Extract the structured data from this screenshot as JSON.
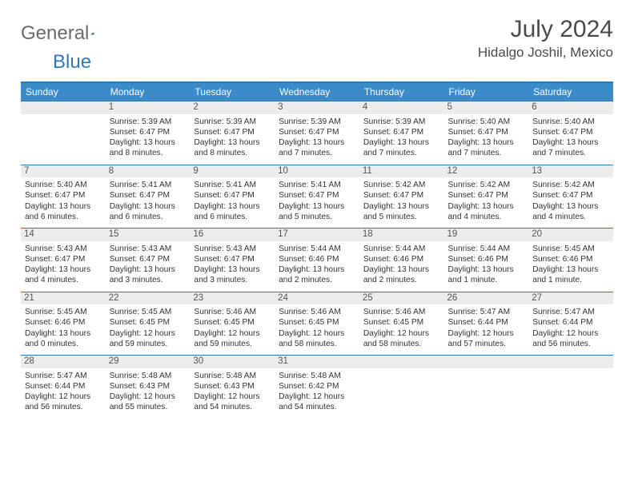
{
  "logo": {
    "word1": "General",
    "word2": "Blue"
  },
  "title": "July 2024",
  "location": "Hidalgo Joshil, Mexico",
  "colors": {
    "headerBg": "#3b8bc9",
    "borderTop": "#2f79b9",
    "rowBorder": "#3179b5",
    "daynumBg": "#ececec"
  },
  "dayNames": [
    "Sunday",
    "Monday",
    "Tuesday",
    "Wednesday",
    "Thursday",
    "Friday",
    "Saturday"
  ],
  "weeks": [
    [
      null,
      {
        "n": "1",
        "sr": "5:39 AM",
        "ss": "6:47 PM",
        "dl": "13 hours and 8 minutes."
      },
      {
        "n": "2",
        "sr": "5:39 AM",
        "ss": "6:47 PM",
        "dl": "13 hours and 8 minutes."
      },
      {
        "n": "3",
        "sr": "5:39 AM",
        "ss": "6:47 PM",
        "dl": "13 hours and 7 minutes."
      },
      {
        "n": "4",
        "sr": "5:39 AM",
        "ss": "6:47 PM",
        "dl": "13 hours and 7 minutes."
      },
      {
        "n": "5",
        "sr": "5:40 AM",
        "ss": "6:47 PM",
        "dl": "13 hours and 7 minutes."
      },
      {
        "n": "6",
        "sr": "5:40 AM",
        "ss": "6:47 PM",
        "dl": "13 hours and 7 minutes."
      }
    ],
    [
      {
        "n": "7",
        "sr": "5:40 AM",
        "ss": "6:47 PM",
        "dl": "13 hours and 6 minutes."
      },
      {
        "n": "8",
        "sr": "5:41 AM",
        "ss": "6:47 PM",
        "dl": "13 hours and 6 minutes."
      },
      {
        "n": "9",
        "sr": "5:41 AM",
        "ss": "6:47 PM",
        "dl": "13 hours and 6 minutes."
      },
      {
        "n": "10",
        "sr": "5:41 AM",
        "ss": "6:47 PM",
        "dl": "13 hours and 5 minutes."
      },
      {
        "n": "11",
        "sr": "5:42 AM",
        "ss": "6:47 PM",
        "dl": "13 hours and 5 minutes."
      },
      {
        "n": "12",
        "sr": "5:42 AM",
        "ss": "6:47 PM",
        "dl": "13 hours and 4 minutes."
      },
      {
        "n": "13",
        "sr": "5:42 AM",
        "ss": "6:47 PM",
        "dl": "13 hours and 4 minutes."
      }
    ],
    [
      {
        "n": "14",
        "sr": "5:43 AM",
        "ss": "6:47 PM",
        "dl": "13 hours and 4 minutes."
      },
      {
        "n": "15",
        "sr": "5:43 AM",
        "ss": "6:47 PM",
        "dl": "13 hours and 3 minutes."
      },
      {
        "n": "16",
        "sr": "5:43 AM",
        "ss": "6:47 PM",
        "dl": "13 hours and 3 minutes."
      },
      {
        "n": "17",
        "sr": "5:44 AM",
        "ss": "6:46 PM",
        "dl": "13 hours and 2 minutes."
      },
      {
        "n": "18",
        "sr": "5:44 AM",
        "ss": "6:46 PM",
        "dl": "13 hours and 2 minutes."
      },
      {
        "n": "19",
        "sr": "5:44 AM",
        "ss": "6:46 PM",
        "dl": "13 hours and 1 minute."
      },
      {
        "n": "20",
        "sr": "5:45 AM",
        "ss": "6:46 PM",
        "dl": "13 hours and 1 minute."
      }
    ],
    [
      {
        "n": "21",
        "sr": "5:45 AM",
        "ss": "6:46 PM",
        "dl": "13 hours and 0 minutes."
      },
      {
        "n": "22",
        "sr": "5:45 AM",
        "ss": "6:45 PM",
        "dl": "12 hours and 59 minutes."
      },
      {
        "n": "23",
        "sr": "5:46 AM",
        "ss": "6:45 PM",
        "dl": "12 hours and 59 minutes."
      },
      {
        "n": "24",
        "sr": "5:46 AM",
        "ss": "6:45 PM",
        "dl": "12 hours and 58 minutes."
      },
      {
        "n": "25",
        "sr": "5:46 AM",
        "ss": "6:45 PM",
        "dl": "12 hours and 58 minutes."
      },
      {
        "n": "26",
        "sr": "5:47 AM",
        "ss": "6:44 PM",
        "dl": "12 hours and 57 minutes."
      },
      {
        "n": "27",
        "sr": "5:47 AM",
        "ss": "6:44 PM",
        "dl": "12 hours and 56 minutes."
      }
    ],
    [
      {
        "n": "28",
        "sr": "5:47 AM",
        "ss": "6:44 PM",
        "dl": "12 hours and 56 minutes."
      },
      {
        "n": "29",
        "sr": "5:48 AM",
        "ss": "6:43 PM",
        "dl": "12 hours and 55 minutes."
      },
      {
        "n": "30",
        "sr": "5:48 AM",
        "ss": "6:43 PM",
        "dl": "12 hours and 54 minutes."
      },
      {
        "n": "31",
        "sr": "5:48 AM",
        "ss": "6:42 PM",
        "dl": "12 hours and 54 minutes."
      },
      null,
      null,
      null
    ]
  ],
  "labels": {
    "sunrise": "Sunrise:",
    "sunset": "Sunset:",
    "daylight": "Daylight:"
  }
}
